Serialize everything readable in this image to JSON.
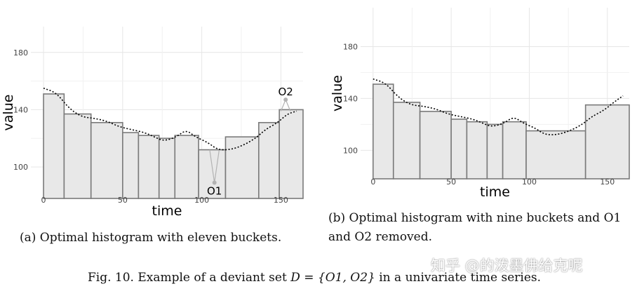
{
  "chart_data": [
    {
      "type": "histogram-with-line",
      "id": "a",
      "xlabel": "time",
      "ylabel": "value",
      "xlim": [
        -8,
        164
      ],
      "ylim": [
        78,
        198
      ],
      "xticks": [
        0,
        50,
        100,
        150
      ],
      "yticks": [
        100,
        140,
        180
      ],
      "grid": true,
      "buckets": [
        {
          "x0": 0,
          "x1": 13,
          "value": 151
        },
        {
          "x0": 13,
          "x1": 30,
          "value": 137
        },
        {
          "x0": 30,
          "x1": 50,
          "value": 131
        },
        {
          "x0": 50,
          "x1": 60,
          "value": 124
        },
        {
          "x0": 60,
          "x1": 73,
          "value": 122
        },
        {
          "x0": 73,
          "x1": 83,
          "value": 120
        },
        {
          "x0": 83,
          "x1": 98,
          "value": 122
        },
        {
          "x0": 98,
          "x1": 115,
          "value": 112
        },
        {
          "x0": 115,
          "x1": 136,
          "value": 121
        },
        {
          "x0": 136,
          "x1": 149,
          "value": 131
        },
        {
          "x0": 149,
          "x1": 164,
          "value": 140
        }
      ],
      "series_points": [
        [
          0,
          155
        ],
        [
          8,
          152
        ],
        [
          16,
          141
        ],
        [
          24,
          135
        ],
        [
          32,
          134
        ],
        [
          40,
          132
        ],
        [
          48,
          128
        ],
        [
          56,
          126
        ],
        [
          64,
          124
        ],
        [
          70,
          121
        ],
        [
          76,
          118
        ],
        [
          84,
          121
        ],
        [
          90,
          126
        ],
        [
          96,
          121
        ],
        [
          104,
          117
        ],
        [
          110,
          112
        ],
        [
          118,
          112
        ],
        [
          126,
          115
        ],
        [
          134,
          120
        ],
        [
          140,
          126
        ],
        [
          148,
          131
        ],
        [
          154,
          137
        ],
        [
          160,
          139
        ]
      ],
      "outliers": [
        {
          "label": "O1",
          "x": 108,
          "y": 89,
          "attach_x": [
            105,
            111
          ],
          "attach_y": 112
        },
        {
          "label": "O2",
          "x": 153,
          "y": 147,
          "attach_x": [
            150,
            156
          ],
          "attach_y": 139
        }
      ],
      "caption": "(a) Optimal histogram with eleven buckets."
    },
    {
      "type": "histogram-with-line",
      "id": "b",
      "xlabel": "time",
      "ylabel": "value",
      "xlim": [
        -8,
        164
      ],
      "ylim": [
        78,
        210
      ],
      "xticks": [
        0,
        50,
        100,
        150
      ],
      "yticks": [
        100,
        140,
        180
      ],
      "grid": true,
      "buckets": [
        {
          "x0": 0,
          "x1": 13,
          "value": 151
        },
        {
          "x0": 13,
          "x1": 30,
          "value": 137
        },
        {
          "x0": 30,
          "x1": 50,
          "value": 130
        },
        {
          "x0": 50,
          "x1": 60,
          "value": 124
        },
        {
          "x0": 60,
          "x1": 73,
          "value": 122
        },
        {
          "x0": 73,
          "x1": 83,
          "value": 120
        },
        {
          "x0": 83,
          "x1": 98,
          "value": 122
        },
        {
          "x0": 98,
          "x1": 136,
          "value": 115
        },
        {
          "x0": 136,
          "x1": 164,
          "value": 135
        }
      ],
      "series_points": [
        [
          0,
          155
        ],
        [
          8,
          152
        ],
        [
          16,
          141
        ],
        [
          24,
          135
        ],
        [
          32,
          134
        ],
        [
          40,
          132
        ],
        [
          48,
          128
        ],
        [
          56,
          126
        ],
        [
          64,
          124
        ],
        [
          70,
          121
        ],
        [
          76,
          118
        ],
        [
          84,
          121
        ],
        [
          90,
          126
        ],
        [
          96,
          121
        ],
        [
          104,
          117
        ],
        [
          110,
          112
        ],
        [
          118,
          112
        ],
        [
          126,
          115
        ],
        [
          134,
          120
        ],
        [
          140,
          126
        ],
        [
          148,
          131
        ],
        [
          154,
          137
        ],
        [
          160,
          142
        ]
      ],
      "caption": "(b) Optimal histogram with nine buckets and O1 and O2 removed."
    }
  ],
  "figure_caption": {
    "prefix": "Fig. 10.  Example of a deviant set ",
    "math": "D = {O1, O2}",
    "suffix": " in a univariate time series."
  },
  "watermark": "知乎 @的泼墨佛给克呢",
  "colors": {
    "panel_bg": "#ffffff",
    "grid": "#e6e6e6",
    "bar_fill": "#e8e8e8",
    "bar_stroke": "#7a7a7a",
    "line": "#000000",
    "outlier_marker": "#b3b3b3"
  }
}
